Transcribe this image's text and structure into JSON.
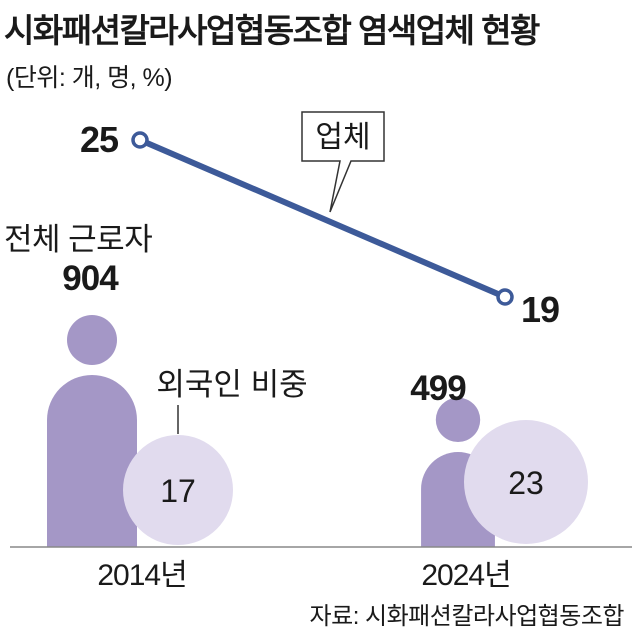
{
  "title": "시화패션칼라사업협동조합 염색업체 현황",
  "unit_note": "(단위: 개, 명, %)",
  "source": "자료: 시화패션칼라사업협동조합",
  "colors": {
    "line": "#3d5a99",
    "worker_figure": "#a497c6",
    "foreign_circle": "#e1dbee",
    "text": "#1a1a1a",
    "baseline": "#888888"
  },
  "chart_data": {
    "type": "line+pictogram",
    "categories": [
      "2014년",
      "2024년"
    ],
    "series": [
      {
        "name": "업체",
        "values": [
          25,
          19
        ]
      }
    ],
    "workers": {
      "label": "전체 근로자",
      "values": [
        904,
        499
      ]
    },
    "foreign_share": {
      "label": "외국인 비중",
      "values": [
        17,
        23
      ]
    }
  }
}
